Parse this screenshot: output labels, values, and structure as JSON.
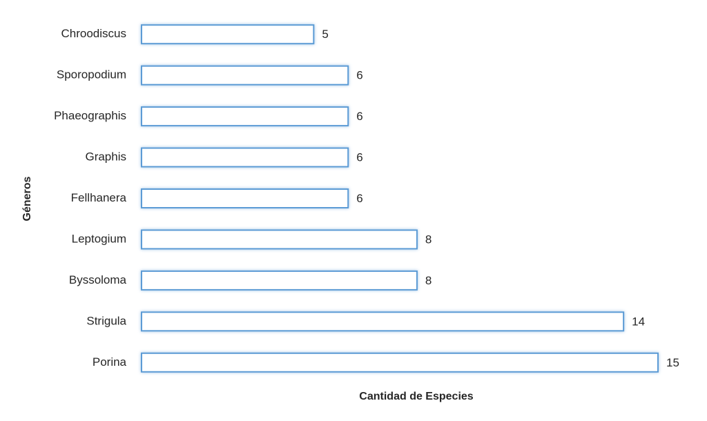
{
  "chart_data": {
    "type": "bar",
    "orientation": "horizontal",
    "x_label": "Cantidad de Especies",
    "y_label": "Géneros",
    "categories": [
      "Chroodiscus",
      "Sporopodium",
      "Phaeographis",
      "Graphis",
      "Fellhanera",
      "Leptogium",
      "Byssoloma",
      "Strigula",
      "Porina"
    ],
    "values": [
      5,
      6,
      6,
      6,
      6,
      8,
      8,
      14,
      15
    ],
    "color": "#5b9bd5"
  }
}
